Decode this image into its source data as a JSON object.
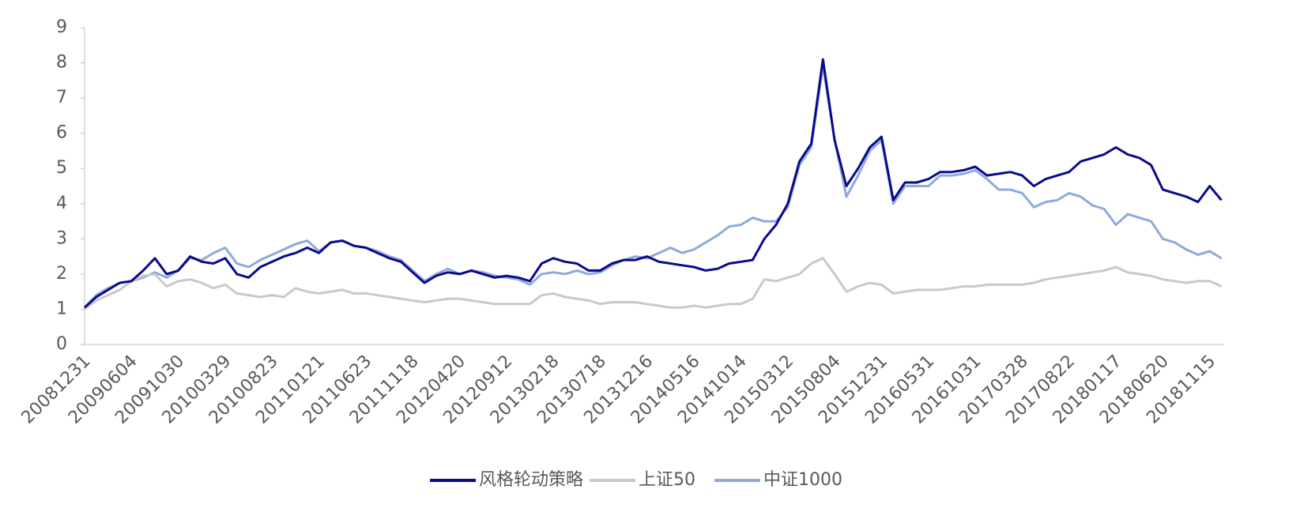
{
  "chart_data": {
    "type": "line",
    "categories": [
      "20081231",
      null,
      null,
      null,
      "20090604",
      null,
      null,
      null,
      "20091030",
      null,
      null,
      null,
      "20100329",
      null,
      null,
      null,
      "20100823",
      null,
      null,
      null,
      "20110121",
      null,
      null,
      null,
      "20110623",
      null,
      null,
      null,
      "20111118",
      null,
      null,
      null,
      "20120420",
      null,
      null,
      null,
      "20120912",
      null,
      null,
      null,
      "20130218",
      null,
      null,
      null,
      "20130718",
      null,
      null,
      null,
      "20131216",
      null,
      null,
      null,
      "20140516",
      null,
      null,
      null,
      "20141014",
      null,
      null,
      null,
      "20150312",
      null,
      null,
      null,
      "20150804",
      null,
      null,
      null,
      "20151231",
      null,
      null,
      null,
      "20160531",
      null,
      null,
      null,
      "20161031",
      null,
      null,
      null,
      "20170328",
      null,
      null,
      null,
      "20170822",
      null,
      null,
      null,
      "20180117",
      null,
      null,
      null,
      "20180620",
      null,
      null,
      null,
      "20181115",
      null
    ],
    "series": [
      {
        "name": "风格轮动策略",
        "color": "#0a0a8c",
        "values": [
          1.05,
          1.35,
          1.55,
          1.75,
          1.8,
          2.1,
          2.45,
          2.0,
          2.1,
          2.5,
          2.35,
          2.3,
          2.45,
          2.0,
          1.9,
          2.2,
          2.35,
          2.5,
          2.6,
          2.75,
          2.6,
          2.9,
          2.95,
          2.8,
          2.75,
          2.6,
          2.45,
          2.35,
          2.05,
          1.75,
          1.95,
          2.05,
          2.0,
          2.1,
          2.0,
          1.9,
          1.95,
          1.9,
          1.8,
          2.3,
          2.45,
          2.35,
          2.3,
          2.1,
          2.1,
          2.3,
          2.4,
          2.4,
          2.5,
          2.35,
          2.3,
          2.25,
          2.2,
          2.1,
          2.15,
          2.3,
          2.35,
          2.4,
          3.0,
          3.4,
          4.0,
          5.2,
          5.7,
          8.1,
          5.8,
          4.5,
          5.0,
          5.6,
          5.9,
          4.1,
          4.6,
          4.6,
          4.7,
          4.9,
          4.9,
          4.95,
          5.05,
          4.8,
          4.85,
          4.9,
          4.8,
          4.5,
          4.7,
          4.8,
          4.9,
          5.2,
          5.3,
          5.4,
          5.6,
          5.4,
          5.3,
          5.1,
          4.4,
          4.3,
          4.2,
          4.05,
          4.5,
          4.1
        ]
      },
      {
        "name": "上证50",
        "color": "#c9c9c9",
        "values": [
          1.0,
          1.25,
          1.4,
          1.55,
          1.8,
          1.95,
          2.0,
          1.65,
          1.8,
          1.85,
          1.75,
          1.6,
          1.7,
          1.45,
          1.4,
          1.35,
          1.4,
          1.35,
          1.6,
          1.5,
          1.45,
          1.5,
          1.55,
          1.45,
          1.45,
          1.4,
          1.35,
          1.3,
          1.25,
          1.2,
          1.25,
          1.3,
          1.3,
          1.25,
          1.2,
          1.15,
          1.15,
          1.15,
          1.15,
          1.4,
          1.45,
          1.35,
          1.3,
          1.25,
          1.15,
          1.2,
          1.2,
          1.2,
          1.15,
          1.1,
          1.05,
          1.05,
          1.1,
          1.05,
          1.1,
          1.15,
          1.15,
          1.3,
          1.85,
          1.8,
          1.9,
          2.0,
          2.3,
          2.45,
          2.0,
          1.5,
          1.65,
          1.75,
          1.7,
          1.45,
          1.5,
          1.55,
          1.55,
          1.55,
          1.6,
          1.65,
          1.65,
          1.7,
          1.7,
          1.7,
          1.7,
          1.75,
          1.85,
          1.9,
          1.95,
          2.0,
          2.05,
          2.1,
          2.2,
          2.05,
          2.0,
          1.95,
          1.85,
          1.8,
          1.75,
          1.8,
          1.8,
          1.65
        ]
      },
      {
        "name": "中证1000",
        "color": "#8eaadb",
        "values": [
          1.05,
          1.4,
          1.6,
          1.75,
          1.8,
          1.9,
          2.05,
          1.9,
          2.1,
          2.45,
          2.4,
          2.6,
          2.75,
          2.3,
          2.2,
          2.4,
          2.55,
          2.7,
          2.85,
          2.95,
          2.65,
          2.9,
          2.95,
          2.8,
          2.75,
          2.65,
          2.5,
          2.4,
          2.1,
          1.8,
          2.0,
          2.15,
          2.0,
          2.1,
          2.05,
          1.95,
          1.9,
          1.85,
          1.7,
          2.0,
          2.05,
          2.0,
          2.1,
          2.0,
          2.05,
          2.25,
          2.4,
          2.5,
          2.45,
          2.6,
          2.75,
          2.6,
          2.7,
          2.9,
          3.1,
          3.35,
          3.4,
          3.6,
          3.5,
          3.5,
          3.9,
          5.1,
          5.6,
          7.9,
          5.8,
          4.2,
          4.8,
          5.5,
          5.8,
          4.0,
          4.5,
          4.5,
          4.5,
          4.8,
          4.8,
          4.85,
          4.95,
          4.7,
          4.4,
          4.4,
          4.3,
          3.9,
          4.05,
          4.1,
          4.3,
          4.2,
          3.95,
          3.85,
          3.4,
          3.7,
          3.6,
          3.5,
          3.0,
          2.9,
          2.7,
          2.55,
          2.65,
          2.45
        ]
      }
    ],
    "ylim": [
      0,
      9
    ],
    "yticks": [
      0,
      1,
      2,
      3,
      4,
      5,
      6,
      7,
      8,
      9
    ],
    "grid": false,
    "legend": "bottom"
  }
}
